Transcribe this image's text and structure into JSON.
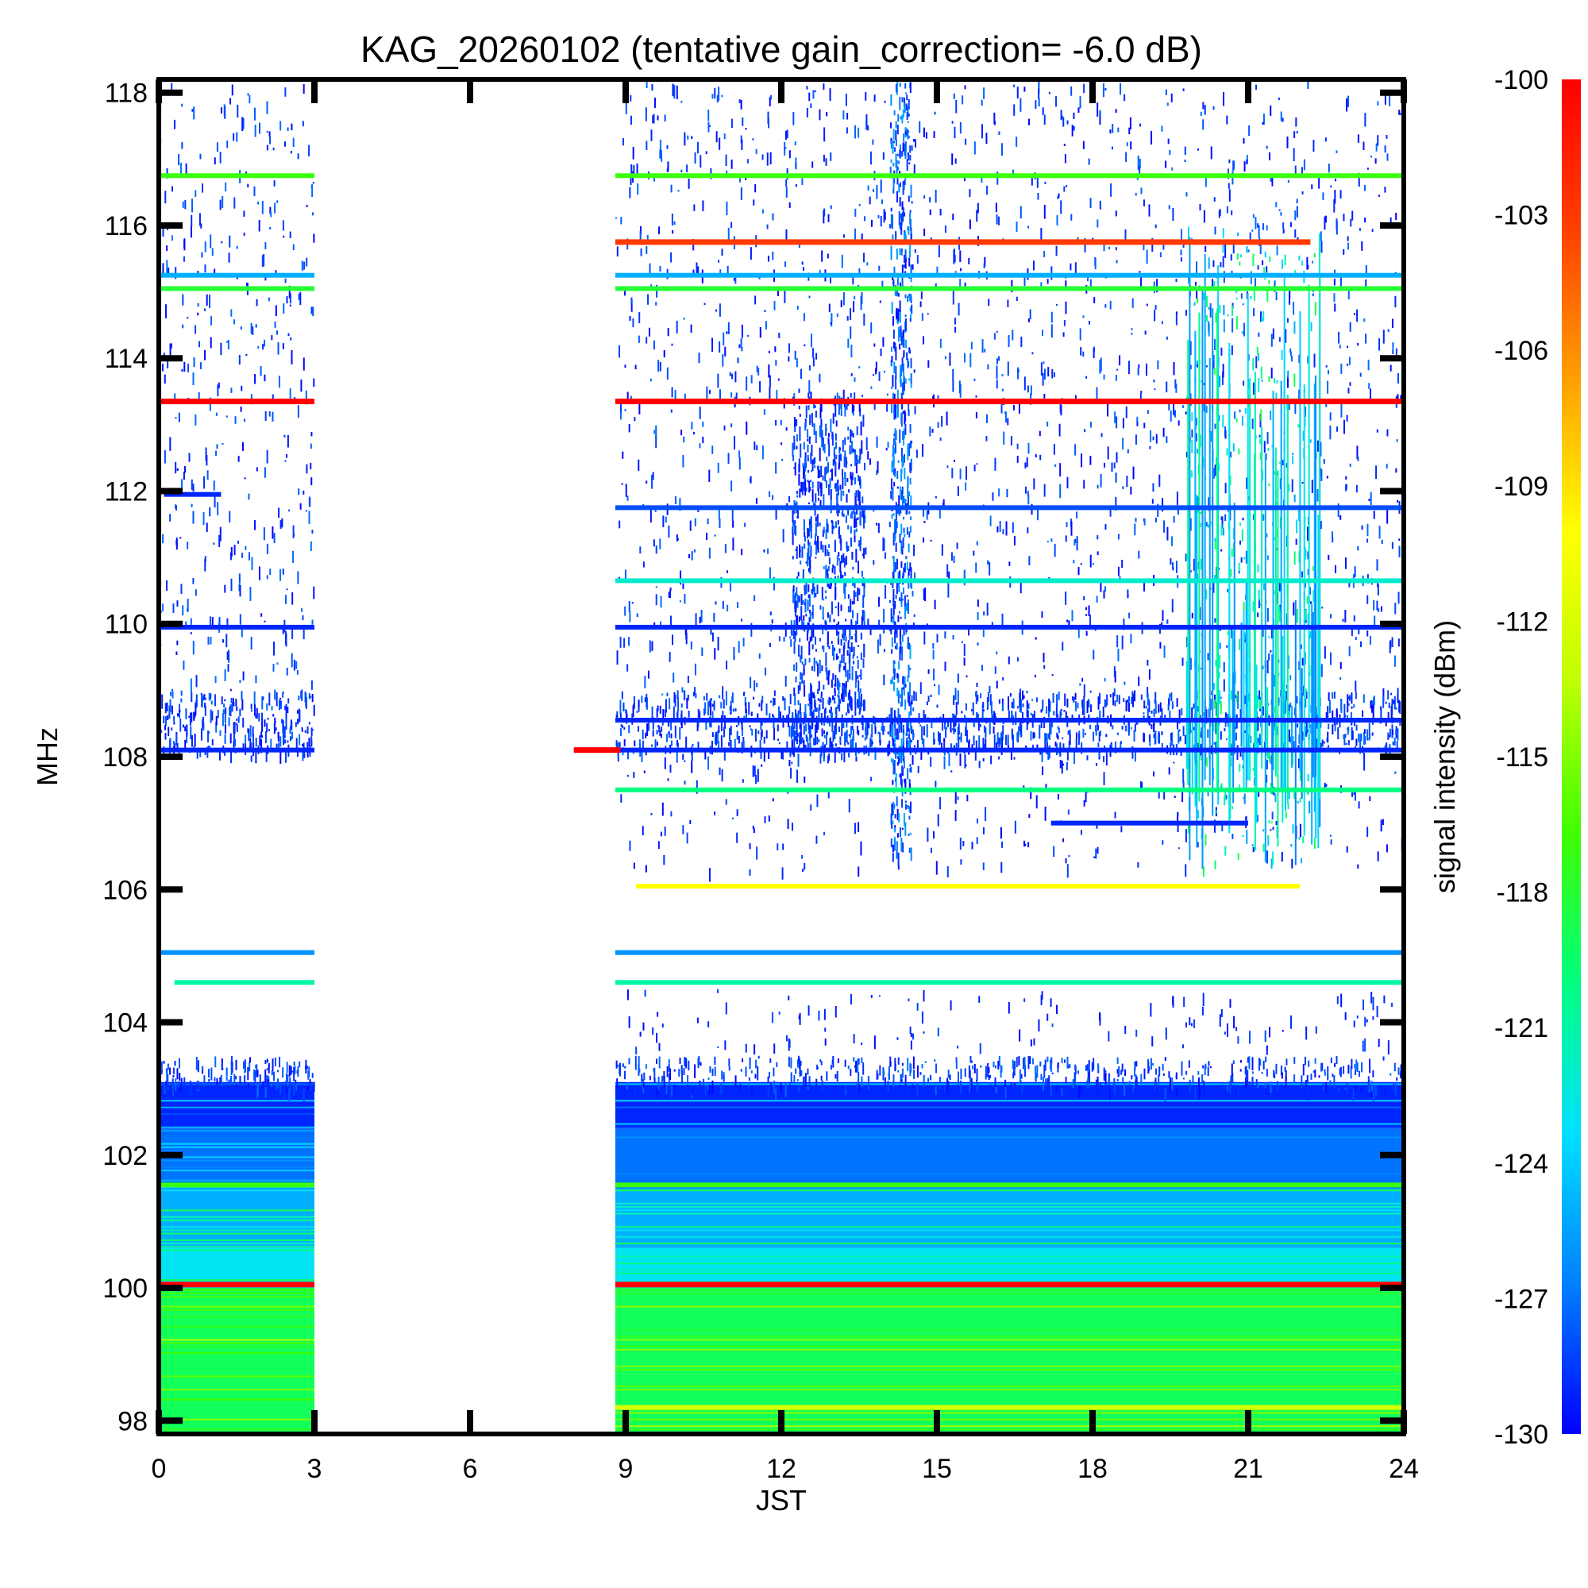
{
  "chart_data": {
    "type": "heatmap",
    "title": "KAG_20260102 (tentative gain_correction= -6.0 dB)",
    "xlabel": "JST",
    "ylabel": "MHz",
    "xlim": [
      0,
      24
    ],
    "ylim": [
      97.8,
      118.2
    ],
    "xticks": [
      0,
      3,
      6,
      9,
      12,
      15,
      18,
      21,
      24
    ],
    "xtick_labels": [
      "0",
      "3",
      "6",
      "9",
      "12",
      "15",
      "18",
      "21",
      "24"
    ],
    "yticks": [
      98,
      100,
      102,
      104,
      106,
      108,
      110,
      112,
      114,
      116,
      118
    ],
    "ytick_labels": [
      "98",
      "100",
      "102",
      "104",
      "106",
      "108",
      "110",
      "112",
      "114",
      "116",
      "118"
    ],
    "colorbar": {
      "label": "signal intensity (dBm)",
      "range": [
        -130,
        -100
      ],
      "ticks": [
        -100,
        -103,
        -106,
        -109,
        -112,
        -115,
        -118,
        -121,
        -124,
        -127,
        -130
      ],
      "tick_labels": [
        "-100",
        "-103",
        "-106",
        "-109",
        "-112",
        "-115",
        "-118",
        "-121",
        "-124",
        "-127",
        "-130"
      ],
      "colormap": [
        "#0000ff",
        "#0080ff",
        "#00e0ff",
        "#00ff80",
        "#40ff00",
        "#c0ff00",
        "#ffff00",
        "#ffa000",
        "#ff4000",
        "#ff0000"
      ]
    },
    "data_gaps_jst": [
      [
        3.0,
        8.8
      ]
    ],
    "bands": [
      {
        "freq_mhz": 116.75,
        "dbm": -117,
        "t_ranges": [
          [
            0,
            3
          ],
          [
            8.8,
            24
          ]
        ]
      },
      {
        "freq_mhz": 115.75,
        "dbm": -103,
        "t_ranges": [
          [
            8.8,
            22.2
          ]
        ]
      },
      {
        "freq_mhz": 115.25,
        "dbm": -125,
        "t_ranges": [
          [
            0,
            3
          ],
          [
            8.8,
            24
          ]
        ]
      },
      {
        "freq_mhz": 115.05,
        "dbm": -118,
        "t_ranges": [
          [
            0,
            3
          ],
          [
            8.8,
            24
          ]
        ]
      },
      {
        "freq_mhz": 113.35,
        "dbm": -100,
        "t_ranges": [
          [
            0,
            3
          ],
          [
            8.8,
            24
          ]
        ]
      },
      {
        "freq_mhz": 111.75,
        "dbm": -128,
        "t_ranges": [
          [
            8.8,
            24
          ]
        ]
      },
      {
        "freq_mhz": 111.95,
        "dbm": -129,
        "t_ranges": [
          [
            0.1,
            1.2
          ]
        ]
      },
      {
        "freq_mhz": 110.65,
        "dbm": -122,
        "t_ranges": [
          [
            8.8,
            24
          ]
        ]
      },
      {
        "freq_mhz": 109.95,
        "dbm": -129,
        "t_ranges": [
          [
            0,
            3
          ],
          [
            8.8,
            24
          ]
        ]
      },
      {
        "freq_mhz": 108.55,
        "dbm": -129,
        "t_ranges": [
          [
            8.8,
            24
          ]
        ]
      },
      {
        "freq_mhz": 108.1,
        "dbm": -129,
        "t_ranges": [
          [
            0,
            3
          ],
          [
            8.8,
            24
          ]
        ]
      },
      {
        "freq_mhz": 108.1,
        "dbm": -100,
        "t_ranges": [
          [
            8.0,
            8.9
          ]
        ]
      },
      {
        "freq_mhz": 107.5,
        "dbm": -120,
        "t_ranges": [
          [
            8.8,
            24
          ]
        ]
      },
      {
        "freq_mhz": 107.0,
        "dbm": -129,
        "t_ranges": [
          [
            17.2,
            21.0
          ]
        ]
      },
      {
        "freq_mhz": 106.05,
        "dbm": -110,
        "t_ranges": [
          [
            9.2,
            22.0
          ]
        ]
      },
      {
        "freq_mhz": 105.05,
        "dbm": -126,
        "t_ranges": [
          [
            0,
            3
          ],
          [
            8.8,
            24
          ]
        ]
      },
      {
        "freq_mhz": 104.6,
        "dbm": -121,
        "t_ranges": [
          [
            0.3,
            3
          ],
          [
            8.8,
            24
          ]
        ]
      },
      {
        "freq_mhz": 101.55,
        "dbm": -117,
        "t_ranges": [
          [
            0,
            3
          ],
          [
            8.8,
            24
          ]
        ]
      },
      {
        "freq_mhz": 100.05,
        "dbm": -100,
        "t_ranges": [
          [
            0,
            3
          ],
          [
            8.8,
            24
          ]
        ]
      },
      {
        "freq_mhz": 98.2,
        "dbm": -112,
        "t_ranges": [
          [
            8.8,
            24
          ]
        ]
      }
    ],
    "noise_floor": [
      {
        "f_lo": 97.8,
        "f_hi": 100.0,
        "dbm": -119
      },
      {
        "f_lo": 100.0,
        "f_hi": 100.6,
        "dbm": -123
      },
      {
        "f_lo": 100.6,
        "f_hi": 101.5,
        "dbm": -125
      },
      {
        "f_lo": 101.5,
        "f_hi": 102.4,
        "dbm": -127
      },
      {
        "f_lo": 102.4,
        "f_hi": 103.1,
        "dbm": -129
      }
    ],
    "broadband_event": {
      "t_range": [
        12.9,
        14.4
      ],
      "f_hi_mhz": 104.0,
      "dbm": -128
    }
  }
}
